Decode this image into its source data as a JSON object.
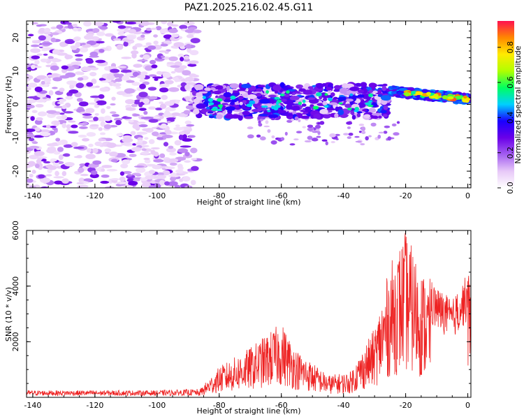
{
  "title": "PAZ1.2025.216.02.45.G11",
  "chart_data": [
    {
      "type": "heatmap",
      "title": "PAZ1.2025.216.02.45.G11",
      "xlabel": "Height of straight line (km)",
      "ylabel": "Frequency (Hz)",
      "xlim": [
        -142,
        1
      ],
      "ylim": [
        -25,
        25
      ],
      "xticks": [
        -140,
        -120,
        -100,
        -80,
        -60,
        -40,
        -20,
        0
      ],
      "yticks": [
        -20,
        -10,
        0,
        10,
        20
      ],
      "colorbar": {
        "label": "Normalized spectral amplitude",
        "range": [
          0,
          0.95
        ],
        "ticks": [
          0.0,
          0.2,
          0.4,
          0.6,
          0.8
        ],
        "colors": [
          "#ffffff",
          "#e7c8f8",
          "#a35ef0",
          "#6a00e8",
          "#1a00ff",
          "#00d0ff",
          "#00ff60",
          "#b0ff00",
          "#ffea00",
          "#ff8800",
          "#ff1050"
        ]
      },
      "regions": [
        {
          "name": "noise",
          "x_range": [
            -142,
            -87
          ],
          "y_range": [
            -25,
            25
          ],
          "level": 0.12
        },
        {
          "name": "signal_band",
          "x_range": [
            -88,
            -25
          ],
          "y_center": 1,
          "y_halfwidth": 5,
          "level": 0.35
        },
        {
          "name": "signal_tail",
          "x_range": [
            -25,
            1
          ],
          "y_start": 4,
          "y_end": 1.5,
          "level": 0.85
        }
      ]
    },
    {
      "type": "line",
      "xlabel": "Height of straight line (km)",
      "ylabel": "SNR (10 * v/v)",
      "xlim": [
        -142,
        1
      ],
      "ylim": [
        0,
        6000
      ],
      "xticks": [
        -140,
        -120,
        -100,
        -80,
        -60,
        -40,
        -20,
        0
      ],
      "yticks": [
        2000,
        4000,
        6000
      ],
      "color": "#ee2222",
      "envelope": [
        {
          "x": -142,
          "y": 150
        },
        {
          "x": -100,
          "y": 150
        },
        {
          "x": -87,
          "y": 200
        },
        {
          "x": -80,
          "y": 1100
        },
        {
          "x": -70,
          "y": 1800
        },
        {
          "x": -60,
          "y": 2700
        },
        {
          "x": -55,
          "y": 1700
        },
        {
          "x": -45,
          "y": 800
        },
        {
          "x": -38,
          "y": 900
        },
        {
          "x": -30,
          "y": 2500
        },
        {
          "x": -25,
          "y": 4800
        },
        {
          "x": -20,
          "y": 6000
        },
        {
          "x": -15,
          "y": 4600
        },
        {
          "x": -10,
          "y": 4000
        },
        {
          "x": -5,
          "y": 3500
        },
        {
          "x": 0,
          "y": 4500
        }
      ]
    }
  ]
}
